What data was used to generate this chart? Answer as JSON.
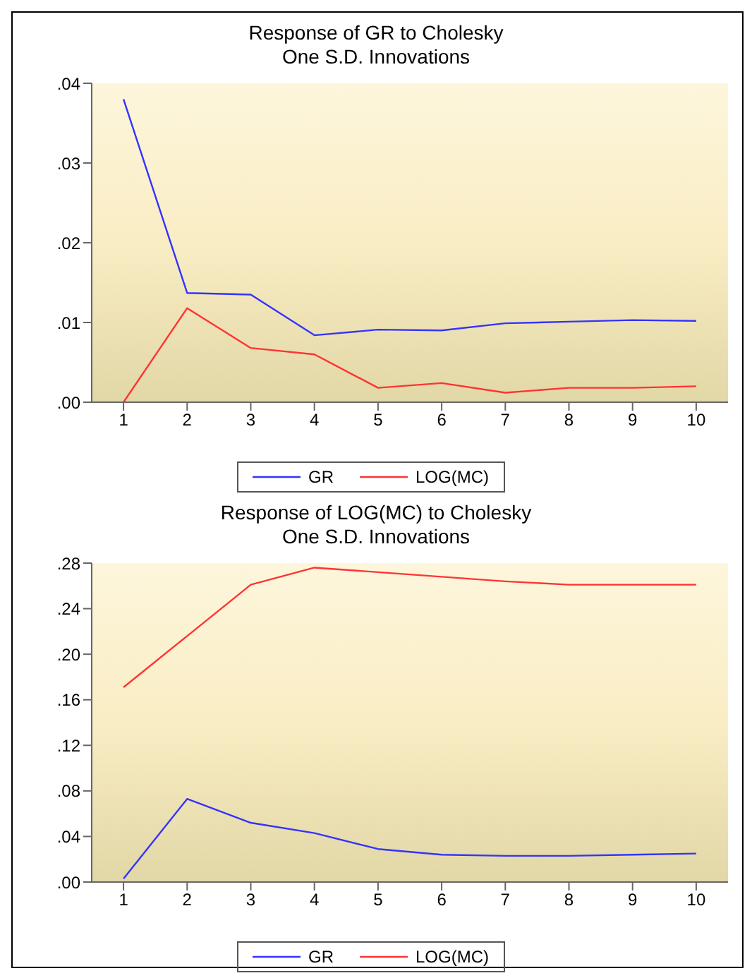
{
  "chart_data": [
    {
      "type": "line",
      "title": "Response of GR to Cholesky",
      "subtitle": "One S.D. Innovations",
      "categories": [
        "1",
        "2",
        "3",
        "4",
        "5",
        "6",
        "7",
        "8",
        "9",
        "10"
      ],
      "series": [
        {
          "name": "GR",
          "color": "#3333ff",
          "values": [
            0.038,
            0.0137,
            0.0135,
            0.0084,
            0.0091,
            0.009,
            0.0099,
            0.0101,
            0.0103,
            0.0102
          ]
        },
        {
          "name": "LOG(MC)",
          "color": "#ff3333",
          "values": [
            0,
            0.0118,
            0.0068,
            0.006,
            0.0018,
            0.0024,
            0.0012,
            0.0018,
            0.0018,
            0.002
          ]
        }
      ],
      "ylim": [
        0,
        0.04
      ],
      "yticks": [
        {
          "value": 0,
          "label": ".00"
        },
        {
          "value": 0.01,
          "label": ".01"
        },
        {
          "value": 0.02,
          "label": ".02"
        },
        {
          "value": 0.03,
          "label": ".03"
        },
        {
          "value": 0.04,
          "label": ".04"
        }
      ],
      "grid": false,
      "legend": "bottom",
      "marker": "none",
      "line_style": "solid"
    },
    {
      "type": "line",
      "title": "Response of LOG(MC) to Cholesky",
      "subtitle": "One S.D. Innovations",
      "categories": [
        "1",
        "2",
        "3",
        "4",
        "5",
        "6",
        "7",
        "8",
        "9",
        "10"
      ],
      "series": [
        {
          "name": "GR",
          "color": "#3333ff",
          "values": [
            0.003,
            0.073,
            0.052,
            0.043,
            0.029,
            0.024,
            0.023,
            0.023,
            0.024,
            0.025
          ]
        },
        {
          "name": "LOG(MC)",
          "color": "#ff3333",
          "values": [
            0.171,
            0.216,
            0.261,
            0.276,
            0.272,
            0.268,
            0.264,
            0.261,
            0.261,
            0.261
          ]
        }
      ],
      "ylim": [
        0,
        0.28
      ],
      "yticks": [
        {
          "value": 0,
          "label": ".00"
        },
        {
          "value": 0.04,
          "label": ".04"
        },
        {
          "value": 0.08,
          "label": ".08"
        },
        {
          "value": 0.12,
          "label": ".12"
        },
        {
          "value": 0.16,
          "label": ".16"
        },
        {
          "value": 0.2,
          "label": ".20"
        },
        {
          "value": 0.24,
          "label": ".24"
        },
        {
          "value": 0.28,
          "label": ".28"
        }
      ],
      "grid": false,
      "legend": "bottom",
      "marker": "none",
      "line_style": "solid"
    }
  ]
}
